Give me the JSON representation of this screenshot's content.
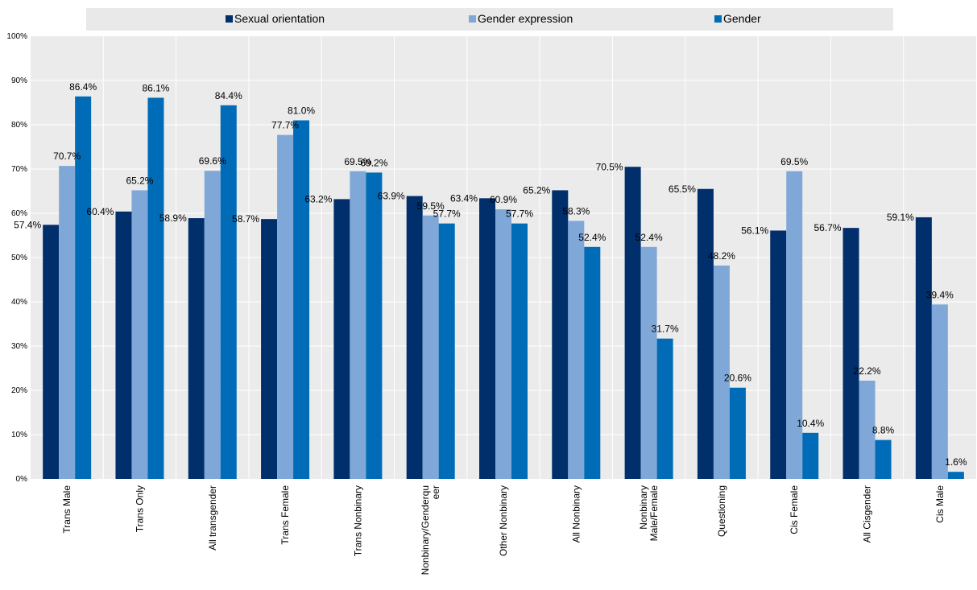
{
  "chart_data": {
    "type": "bar",
    "title": "",
    "xlabel": "",
    "ylabel": "",
    "ylim": [
      0,
      100
    ],
    "y_ticks": [
      "0%",
      "10%",
      "20%",
      "30%",
      "40%",
      "50%",
      "60%",
      "70%",
      "80%",
      "90%",
      "100%"
    ],
    "legend_position": "top",
    "grid": true,
    "categories": [
      "Trans Male",
      "Trans Only",
      "All transgender",
      "Trans Female",
      "Trans Nonbinary",
      "Nonbinary/Genderqueer",
      "Other Nonbinary",
      "All Nonbinary",
      "Nonbinary Male/Female",
      "Questioning",
      "Cis Female",
      "All Cisgender",
      "Cis Male"
    ],
    "category_lines": [
      [
        "Trans Male"
      ],
      [
        "Trans Only"
      ],
      [
        "All transgender"
      ],
      [
        "Trans Female"
      ],
      [
        "Trans Nonbinary"
      ],
      [
        "Nonbinary/Genderqu",
        "eer"
      ],
      [
        "Other Nonbinary"
      ],
      [
        "All Nonbinary"
      ],
      [
        "Nonbinary",
        "Male/Female"
      ],
      [
        "Questioning"
      ],
      [
        "Cis Female"
      ],
      [
        "All Cisgender"
      ],
      [
        "Cis Male"
      ]
    ],
    "series": [
      {
        "name": "Sexual orientation",
        "color": "#002f6c",
        "values": [
          57.4,
          60.4,
          58.9,
          58.7,
          63.2,
          63.9,
          63.4,
          65.2,
          70.5,
          65.5,
          56.1,
          56.7,
          59.1
        ],
        "labels": [
          "57.4%",
          "60.4%",
          "58.9%",
          "58.7%",
          "63.2%",
          "63.9%",
          "63.4%",
          "65.2%",
          "70.5%",
          "65.5%",
          "56.1%",
          "56.7%",
          "59.1%"
        ]
      },
      {
        "name": "Gender expression",
        "color": "#7fa8d9",
        "values": [
          70.7,
          65.2,
          69.6,
          77.7,
          69.5,
          59.5,
          60.9,
          58.3,
          52.4,
          48.2,
          69.5,
          22.2,
          39.4
        ],
        "labels": [
          "70.7%",
          "65.2%",
          "69.6%",
          "77.7%",
          "69.5%",
          "59.5%",
          "60.9%",
          "58.3%",
          "52.4%",
          "48.2%",
          "69.5%",
          "22.2%",
          "39.4%"
        ]
      },
      {
        "name": "Gender",
        "color": "#006bb6",
        "values": [
          86.4,
          86.1,
          84.4,
          81.0,
          69.2,
          57.7,
          57.7,
          52.4,
          31.7,
          20.6,
          10.4,
          8.8,
          1.6
        ],
        "labels": [
          "86.4%",
          "86.1%",
          "84.4%",
          "81.0%",
          "69.2%",
          "57.7%",
          "57.7%",
          "52.4%",
          "31.7%",
          "20.6%",
          "10.4%",
          "8.8%",
          "1.6%"
        ]
      }
    ]
  }
}
